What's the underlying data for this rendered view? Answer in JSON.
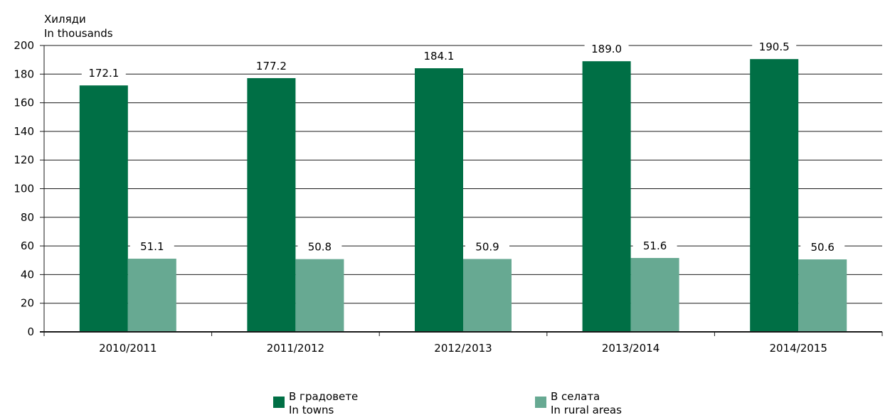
{
  "chart_data": {
    "type": "bar",
    "ylabel_bg": "Хиляди",
    "ylabel_en": "In thousands",
    "ylim": [
      0,
      200
    ],
    "yticks": [
      0,
      20,
      40,
      60,
      80,
      100,
      120,
      140,
      160,
      180,
      200
    ],
    "grid": true,
    "categories": [
      "2010/2011",
      "2011/2012",
      "2012/2013",
      "2013/2014",
      "2014/2015"
    ],
    "series": [
      {
        "name_bg": "В градовете",
        "name_en": "In towns",
        "color": "#006f45",
        "values": [
          172.1,
          177.2,
          184.1,
          189.0,
          190.5
        ],
        "labels": [
          "172.1",
          "177.2",
          "184.1",
          "189.0",
          "190.5"
        ]
      },
      {
        "name_bg": "В селата",
        "name_en": "In rural areas",
        "color": "#67a992",
        "values": [
          51.1,
          50.8,
          50.9,
          51.6,
          50.6
        ],
        "labels": [
          "51.1",
          "50.8",
          "50.9",
          "51.6",
          "50.6"
        ]
      }
    ],
    "legend_position": "bottom"
  }
}
